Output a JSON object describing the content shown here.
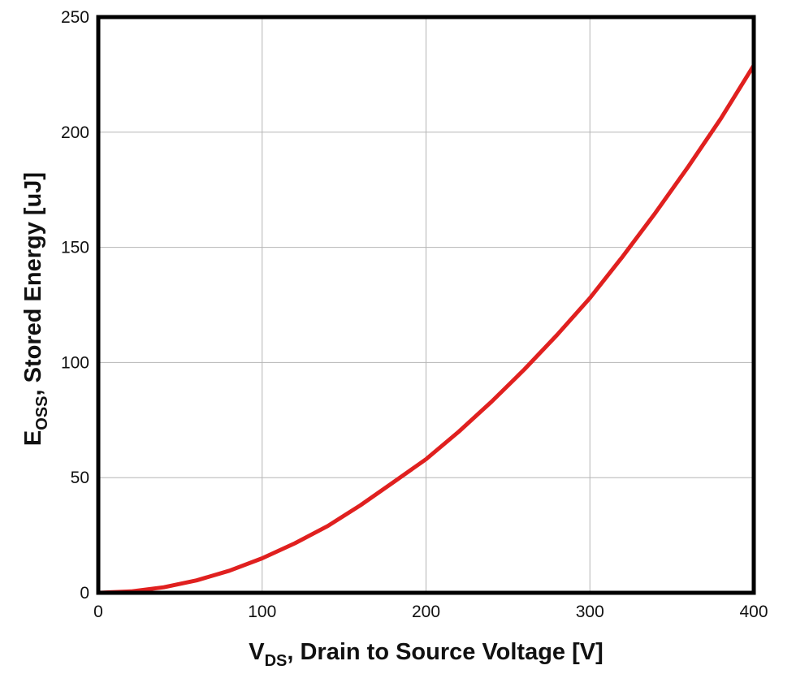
{
  "chart_data": {
    "type": "line",
    "title": "",
    "xlabel": {
      "main": "V",
      "sub": "DS",
      "rest": ", Drain to Source Voltage [V]"
    },
    "ylabel": {
      "main": "E",
      "sub": "OSS",
      "rest": ", Stored Energy [uJ]"
    },
    "xlim": [
      0,
      400
    ],
    "ylim": [
      0,
      250
    ],
    "xticks": [
      0,
      100,
      200,
      300,
      400
    ],
    "yticks": [
      0,
      50,
      100,
      150,
      200,
      250
    ],
    "grid": true,
    "series": [
      {
        "color": "#e0201f",
        "x": [
          0,
          20,
          40,
          60,
          80,
          100,
          120,
          140,
          160,
          180,
          200,
          220,
          240,
          260,
          280,
          300,
          320,
          340,
          360,
          380,
          400
        ],
        "y": [
          0,
          0.6,
          2.4,
          5.4,
          9.6,
          15,
          21.5,
          29,
          38,
          48,
          58,
          70,
          83,
          97,
          112,
          128,
          146,
          165,
          185,
          206,
          229
        ]
      }
    ]
  }
}
